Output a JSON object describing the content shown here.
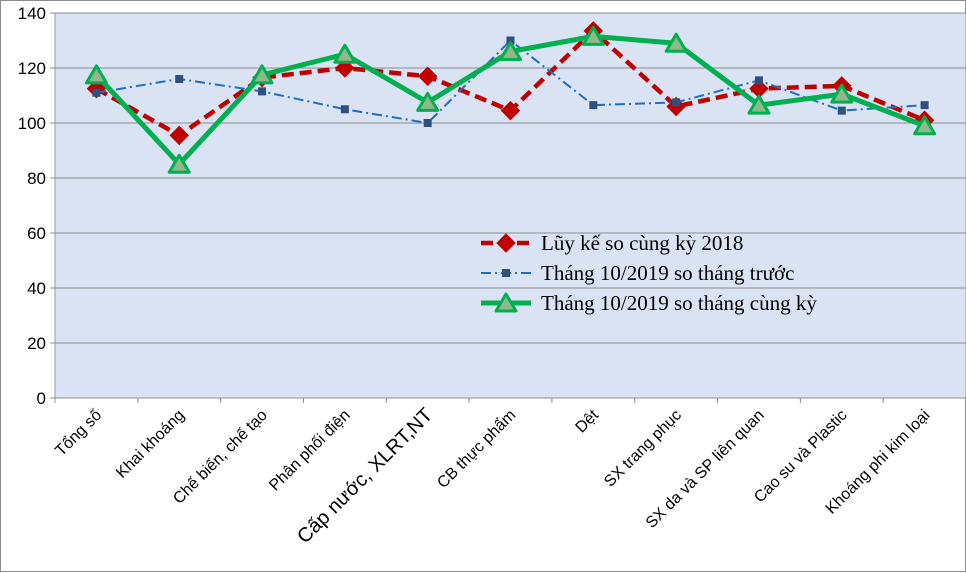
{
  "chart_data": {
    "type": "line",
    "title": "",
    "xlabel": "",
    "ylabel": "",
    "ylim": [
      0,
      140
    ],
    "yticks": [
      0,
      20,
      40,
      60,
      80,
      100,
      120,
      140
    ],
    "grid": true,
    "legend_position": "center-right",
    "categories": [
      "Tổng số",
      "Khai khoáng",
      "Chế biến, chế tạo",
      "Phân phối điện",
      "Cấp nước, XLRT,NT",
      "CB thực phẩm",
      "Dệt",
      "SX trang phục",
      "SX da và SP liên quan",
      "Cao su và Plastic",
      "Khoáng phi kim loại"
    ],
    "series": [
      {
        "name": "Lũy kế so cùng kỳ 2018",
        "color": "#c00000",
        "style": "dash",
        "marker": "diamond",
        "values": [
          112.5,
          95.5,
          116.5,
          120,
          117,
          104.5,
          133.5,
          106,
          112.5,
          113.5,
          101
        ]
      },
      {
        "name": "Tháng 10/2019  so tháng trước",
        "color": "#1f6fc0",
        "style": "dashdot",
        "marker": "square",
        "values": [
          111,
          116,
          111.5,
          105,
          100,
          130,
          106.5,
          107.5,
          115.5,
          104.5,
          106.5
        ]
      },
      {
        "name": "Tháng 10/2019  so tháng cùng kỳ",
        "color": "#00b050",
        "style": "solid",
        "marker": "triangle",
        "values": [
          117.5,
          85,
          117.5,
          125,
          107.5,
          126,
          131.5,
          129,
          106.5,
          110.5,
          99
        ]
      }
    ]
  }
}
